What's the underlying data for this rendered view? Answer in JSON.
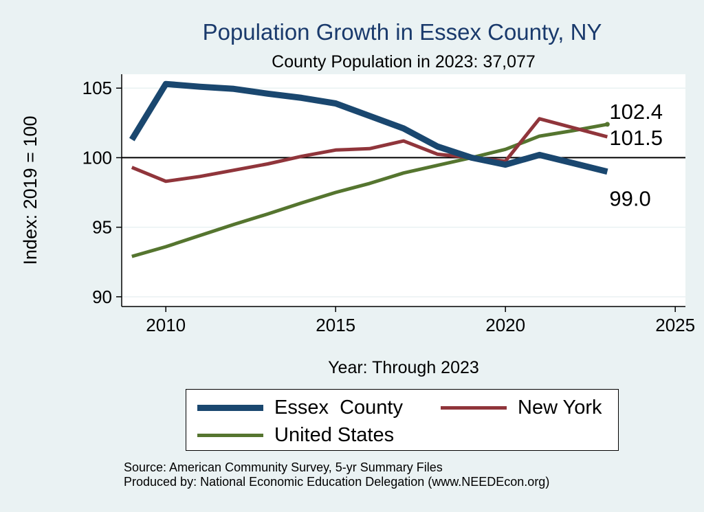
{
  "chart_data": {
    "type": "line",
    "title": "Population Growth in Essex County, NY",
    "subtitle": "County Population in 2023: 37,077",
    "xlabel": "Year: Through 2023",
    "ylabel": "Index: 2019 = 100",
    "xlim": [
      2008.7,
      2025.3
    ],
    "ylim": [
      89.3,
      106
    ],
    "xticks": [
      2010,
      2015,
      2020,
      2025
    ],
    "yticks": [
      90,
      95,
      100,
      105
    ],
    "reference_line": 100,
    "x": [
      2009,
      2010,
      2011,
      2012,
      2013,
      2014,
      2015,
      2016,
      2017,
      2018,
      2019,
      2020,
      2021,
      2022,
      2023
    ],
    "series": [
      {
        "name": "Essex  County",
        "color": "#1a476f",
        "width": 9,
        "values": [
          101.3,
          105.3,
          105.1,
          104.95,
          104.6,
          104.3,
          103.9,
          103.0,
          102.1,
          100.8,
          100.0,
          99.5,
          100.2,
          99.6,
          99.0
        ],
        "end_label": "99.0"
      },
      {
        "name": "New York",
        "color": "#90353b",
        "width": 5,
        "values": [
          99.3,
          98.3,
          98.65,
          99.1,
          99.55,
          100.1,
          100.55,
          100.65,
          101.2,
          100.25,
          100.0,
          99.75,
          102.8,
          102.15,
          101.5
        ],
        "end_label": "101.5"
      },
      {
        "name": "United States",
        "color": "#55752f",
        "width": 5,
        "values": [
          92.9,
          93.6,
          94.4,
          95.2,
          95.95,
          96.75,
          97.5,
          98.15,
          98.9,
          99.45,
          100.0,
          100.6,
          101.55,
          101.95,
          102.4
        ],
        "end_label": "102.4"
      }
    ]
  },
  "legend": {
    "items": [
      {
        "label": "Essex  County",
        "color": "#1a476f"
      },
      {
        "label": "New York",
        "color": "#90353b"
      },
      {
        "label": "United States",
        "color": "#55752f"
      }
    ]
  },
  "footer": {
    "source": "Source: American Community Survey, 5-yr Summary Files",
    "producer": "Produced by: National Economic Education Delegation (www.NEEDEcon.org)"
  }
}
